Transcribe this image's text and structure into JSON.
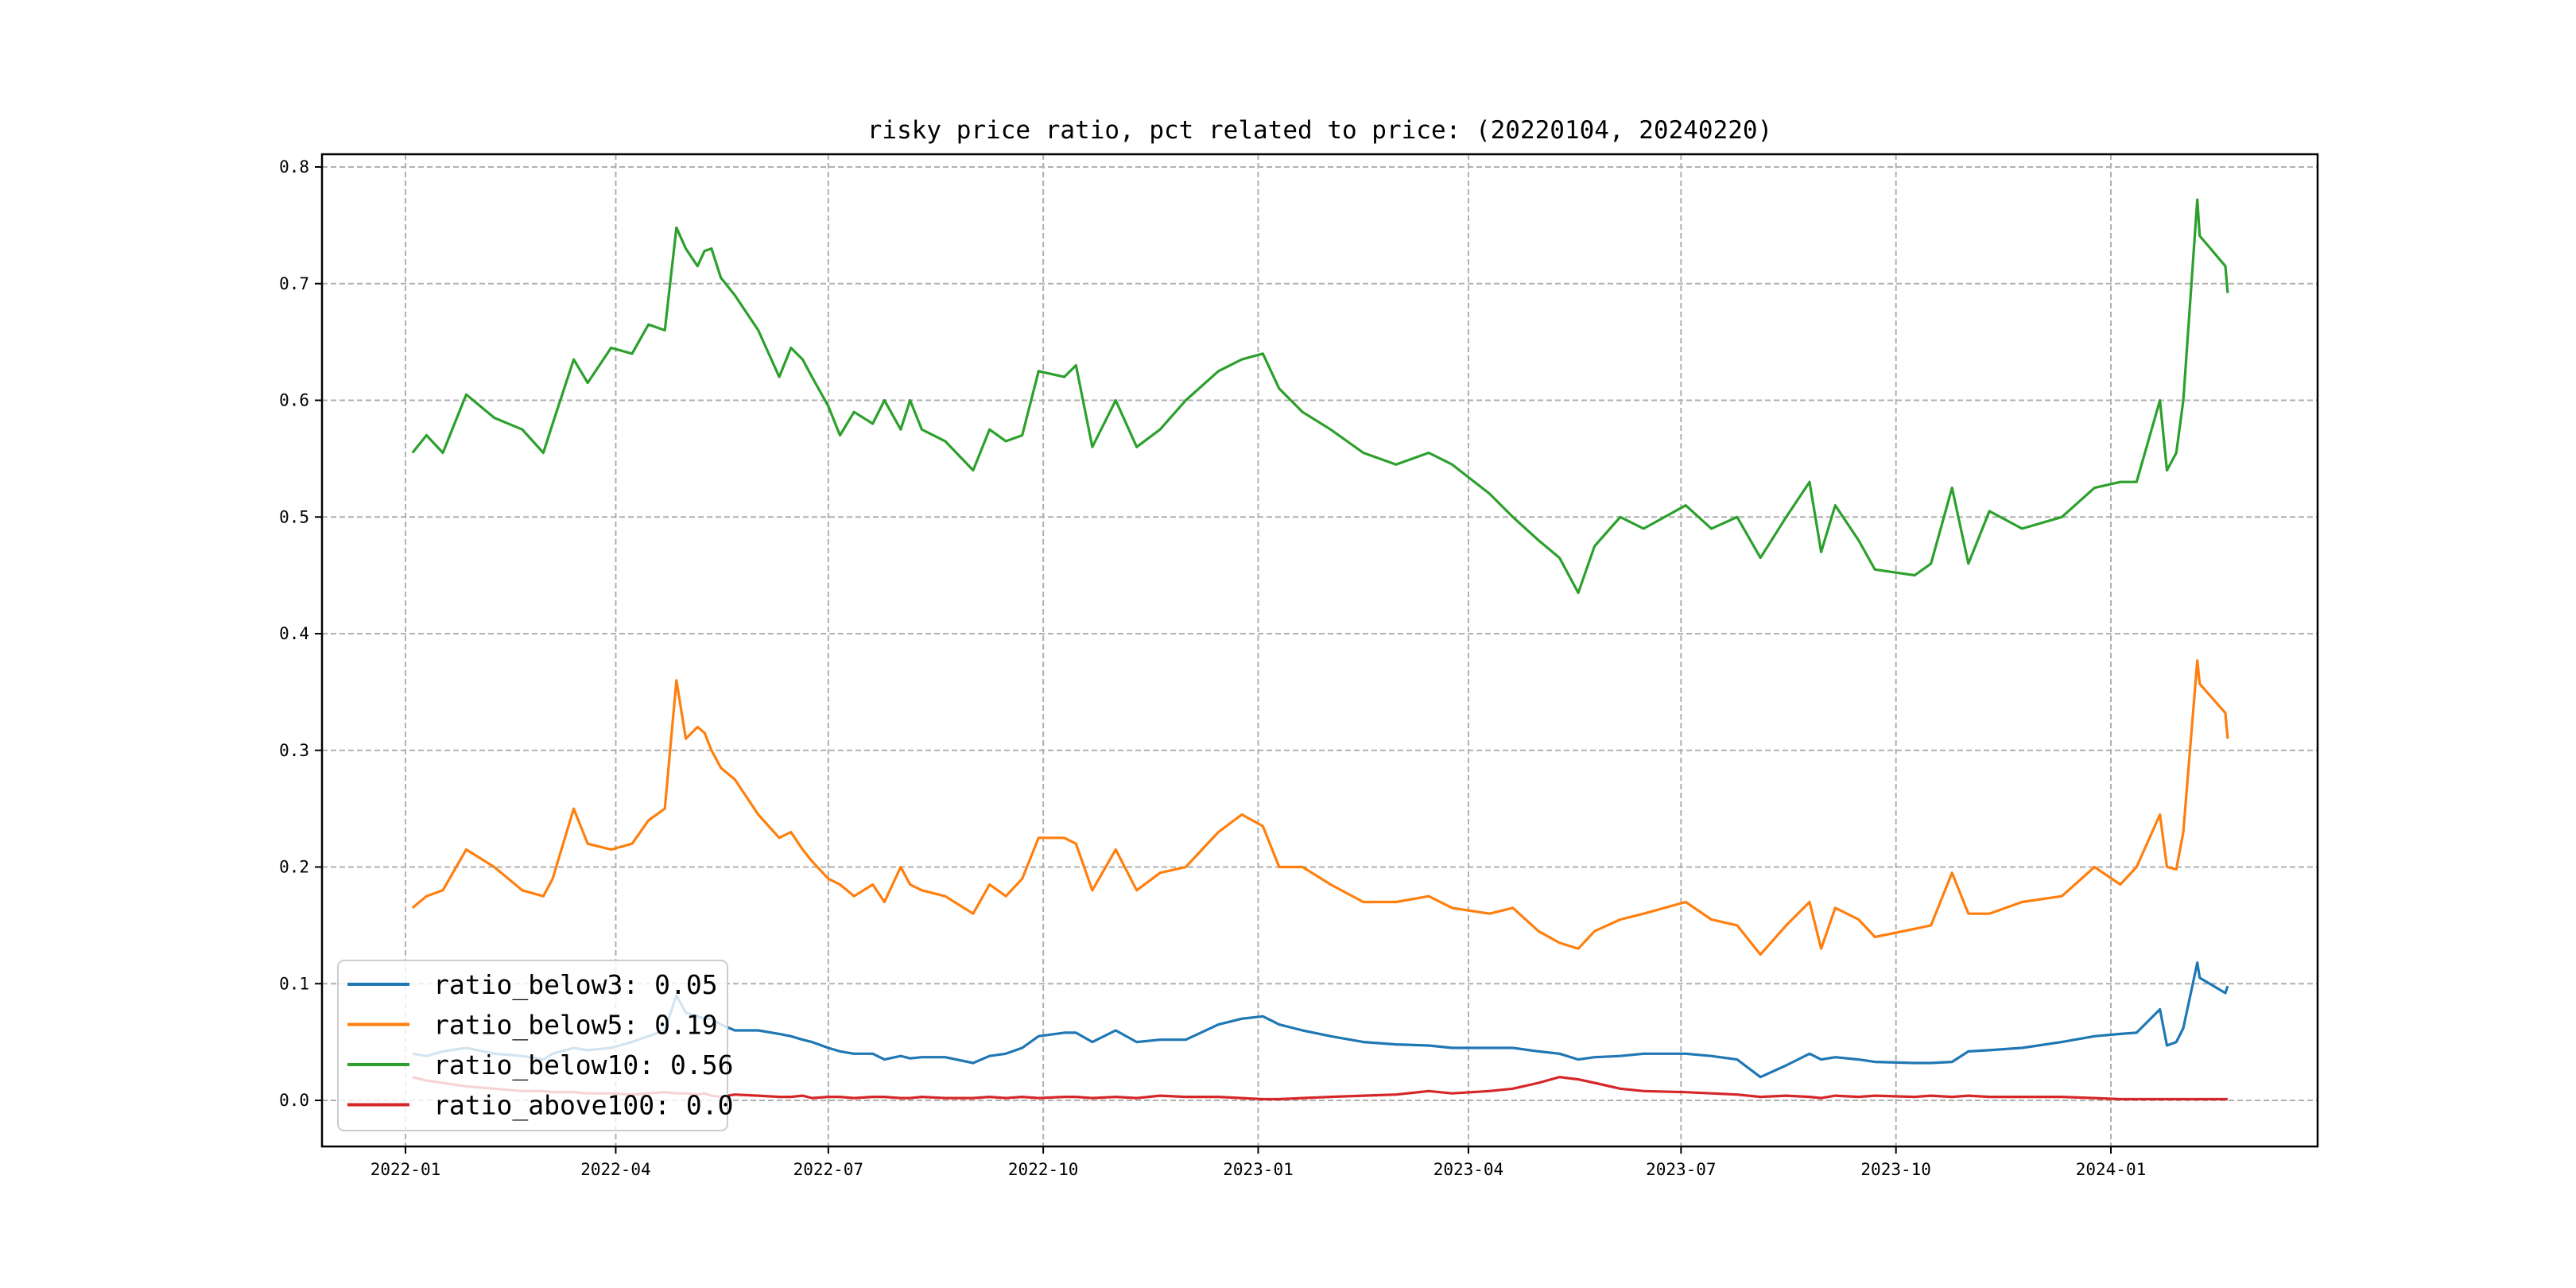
{
  "chart_data": {
    "type": "line",
    "title": "risky price ratio, pct related to price: (20220104, 20240220)",
    "xlabel": "",
    "ylabel": "",
    "ylim": [
      -0.04,
      0.81
    ],
    "xlim": [
      "2021-12-08",
      "2024-03-30"
    ],
    "grid": true,
    "legend_position": "lower-left",
    "yticks": [
      0.0,
      0.1,
      0.2,
      0.3,
      0.4,
      0.5,
      0.6,
      0.7,
      0.8
    ],
    "ytick_labels": [
      "0.0",
      "0.1",
      "0.2",
      "0.3",
      "0.4",
      "0.5",
      "0.6",
      "0.7",
      "0.8"
    ],
    "xticks": [
      "2022-01-01",
      "2022-04-01",
      "2022-07-01",
      "2022-10-01",
      "2023-01-01",
      "2023-04-01",
      "2023-07-01",
      "2023-10-01",
      "2024-01-01"
    ],
    "xtick_labels": [
      "2022-01",
      "2022-04",
      "2022-07",
      "2022-10",
      "2023-01",
      "2023-04",
      "2023-07",
      "2023-10",
      "2024-01"
    ],
    "x": [
      "2022-01-04",
      "2022-01-10",
      "2022-01-17",
      "2022-01-27",
      "2022-02-08",
      "2022-02-20",
      "2022-03-01",
      "2022-03-05",
      "2022-03-14",
      "2022-03-20",
      "2022-03-30",
      "2022-04-08",
      "2022-04-15",
      "2022-04-22",
      "2022-04-27",
      "2022-05-01",
      "2022-05-06",
      "2022-05-09",
      "2022-05-12",
      "2022-05-16",
      "2022-05-22",
      "2022-06-01",
      "2022-06-10",
      "2022-06-15",
      "2022-06-20",
      "2022-06-24",
      "2022-07-01",
      "2022-07-06",
      "2022-07-12",
      "2022-07-20",
      "2022-07-25",
      "2022-08-01",
      "2022-08-05",
      "2022-08-10",
      "2022-08-20",
      "2022-09-01",
      "2022-09-08",
      "2022-09-15",
      "2022-09-22",
      "2022-09-29",
      "2022-10-10",
      "2022-10-15",
      "2022-10-22",
      "2022-11-01",
      "2022-11-10",
      "2022-11-20",
      "2022-12-01",
      "2022-12-15",
      "2022-12-25",
      "2023-01-03",
      "2023-01-10",
      "2023-01-20",
      "2023-02-01",
      "2023-02-15",
      "2023-03-01",
      "2023-03-15",
      "2023-03-25",
      "2023-04-10",
      "2023-04-20",
      "2023-05-01",
      "2023-05-10",
      "2023-05-18",
      "2023-05-25",
      "2023-06-05",
      "2023-06-15",
      "2023-07-03",
      "2023-07-14",
      "2023-07-25",
      "2023-08-04",
      "2023-08-15",
      "2023-08-25",
      "2023-08-30",
      "2023-09-05",
      "2023-09-15",
      "2023-09-22",
      "2023-10-09",
      "2023-10-16",
      "2023-10-25",
      "2023-11-01",
      "2023-11-10",
      "2023-11-24",
      "2023-12-11",
      "2023-12-25",
      "2024-01-05",
      "2024-01-12",
      "2024-01-22",
      "2024-01-25",
      "2024-01-29",
      "2024-02-01",
      "2024-02-07",
      "2024-02-08",
      "2024-02-19",
      "2024-02-20"
    ],
    "series": [
      {
        "name": "ratio_below3",
        "legend_label": "ratio_below3: 0.05",
        "color": "#1f77b4",
        "values": [
          0.04,
          0.038,
          0.042,
          0.045,
          0.04,
          0.038,
          0.035,
          0.04,
          0.045,
          0.043,
          0.045,
          0.05,
          0.055,
          0.06,
          0.09,
          0.075,
          0.072,
          0.07,
          0.07,
          0.065,
          0.06,
          0.06,
          0.057,
          0.055,
          0.052,
          0.05,
          0.045,
          0.042,
          0.04,
          0.04,
          0.035,
          0.038,
          0.036,
          0.037,
          0.037,
          0.032,
          0.038,
          0.04,
          0.045,
          0.055,
          0.058,
          0.058,
          0.05,
          0.06,
          0.05,
          0.052,
          0.052,
          0.065,
          0.07,
          0.072,
          0.065,
          0.06,
          0.055,
          0.05,
          0.048,
          0.047,
          0.045,
          0.045,
          0.045,
          0.042,
          0.04,
          0.035,
          0.037,
          0.038,
          0.04,
          0.04,
          0.038,
          0.035,
          0.02,
          0.03,
          0.04,
          0.035,
          0.037,
          0.035,
          0.033,
          0.032,
          0.032,
          0.033,
          0.042,
          0.043,
          0.045,
          0.05,
          0.055,
          0.057,
          0.058,
          0.078,
          0.047,
          0.05,
          0.062,
          0.118,
          0.105,
          0.092,
          0.098
        ]
      },
      {
        "name": "ratio_below5",
        "legend_label": "ratio_below5: 0.19",
        "color": "#ff7f0e",
        "values": [
          0.165,
          0.175,
          0.18,
          0.215,
          0.2,
          0.18,
          0.175,
          0.19,
          0.25,
          0.22,
          0.215,
          0.22,
          0.24,
          0.25,
          0.36,
          0.31,
          0.32,
          0.315,
          0.3,
          0.285,
          0.275,
          0.245,
          0.225,
          0.23,
          0.215,
          0.205,
          0.19,
          0.185,
          0.175,
          0.185,
          0.17,
          0.2,
          0.185,
          0.18,
          0.175,
          0.16,
          0.185,
          0.175,
          0.19,
          0.225,
          0.225,
          0.22,
          0.18,
          0.215,
          0.18,
          0.195,
          0.2,
          0.23,
          0.245,
          0.235,
          0.2,
          0.2,
          0.185,
          0.17,
          0.17,
          0.175,
          0.165,
          0.16,
          0.165,
          0.145,
          0.135,
          0.13,
          0.145,
          0.155,
          0.16,
          0.17,
          0.155,
          0.15,
          0.125,
          0.15,
          0.17,
          0.13,
          0.165,
          0.155,
          0.14,
          0.147,
          0.15,
          0.195,
          0.16,
          0.16,
          0.17,
          0.175,
          0.2,
          0.185,
          0.2,
          0.245,
          0.2,
          0.198,
          0.23,
          0.377,
          0.357,
          0.332,
          0.31
        ]
      },
      {
        "name": "ratio_below10",
        "legend_label": "ratio_below10: 0.56",
        "color": "#2ca02c",
        "values": [
          0.555,
          0.57,
          0.555,
          0.605,
          0.585,
          0.575,
          0.555,
          0.58,
          0.635,
          0.615,
          0.645,
          0.64,
          0.665,
          0.66,
          0.748,
          0.73,
          0.715,
          0.728,
          0.73,
          0.705,
          0.69,
          0.66,
          0.62,
          0.645,
          0.635,
          0.62,
          0.595,
          0.57,
          0.59,
          0.58,
          0.6,
          0.575,
          0.6,
          0.575,
          0.565,
          0.54,
          0.575,
          0.565,
          0.57,
          0.625,
          0.62,
          0.63,
          0.56,
          0.6,
          0.56,
          0.575,
          0.6,
          0.625,
          0.635,
          0.64,
          0.61,
          0.59,
          0.575,
          0.555,
          0.545,
          0.555,
          0.545,
          0.52,
          0.5,
          0.48,
          0.465,
          0.435,
          0.475,
          0.5,
          0.49,
          0.51,
          0.49,
          0.5,
          0.465,
          0.5,
          0.53,
          0.47,
          0.51,
          0.48,
          0.455,
          0.45,
          0.46,
          0.525,
          0.46,
          0.505,
          0.49,
          0.5,
          0.525,
          0.53,
          0.53,
          0.6,
          0.54,
          0.555,
          0.6,
          0.772,
          0.741,
          0.715,
          0.692
        ]
      },
      {
        "name": "ratio_above100",
        "legend_label": "ratio_above100: 0.0",
        "color": "#d62728",
        "values": [
          0.02,
          0.017,
          0.015,
          0.012,
          0.01,
          0.008,
          0.008,
          0.007,
          0.007,
          0.006,
          0.006,
          0.005,
          0.006,
          0.007,
          0.006,
          0.006,
          0.005,
          0.006,
          0.004,
          0.003,
          0.005,
          0.004,
          0.003,
          0.003,
          0.004,
          0.002,
          0.003,
          0.003,
          0.002,
          0.003,
          0.003,
          0.002,
          0.002,
          0.003,
          0.002,
          0.002,
          0.003,
          0.002,
          0.003,
          0.002,
          0.003,
          0.003,
          0.002,
          0.003,
          0.002,
          0.004,
          0.003,
          0.003,
          0.002,
          0.001,
          0.001,
          0.002,
          0.003,
          0.004,
          0.005,
          0.008,
          0.006,
          0.008,
          0.01,
          0.015,
          0.02,
          0.018,
          0.015,
          0.01,
          0.008,
          0.007,
          0.006,
          0.005,
          0.003,
          0.004,
          0.003,
          0.002,
          0.004,
          0.003,
          0.004,
          0.003,
          0.004,
          0.003,
          0.004,
          0.003,
          0.003,
          0.003,
          0.002,
          0.001,
          0.001,
          0.001,
          0.001,
          0.001,
          0.001,
          0.001,
          0.001,
          0.001,
          0.001
        ]
      }
    ]
  }
}
